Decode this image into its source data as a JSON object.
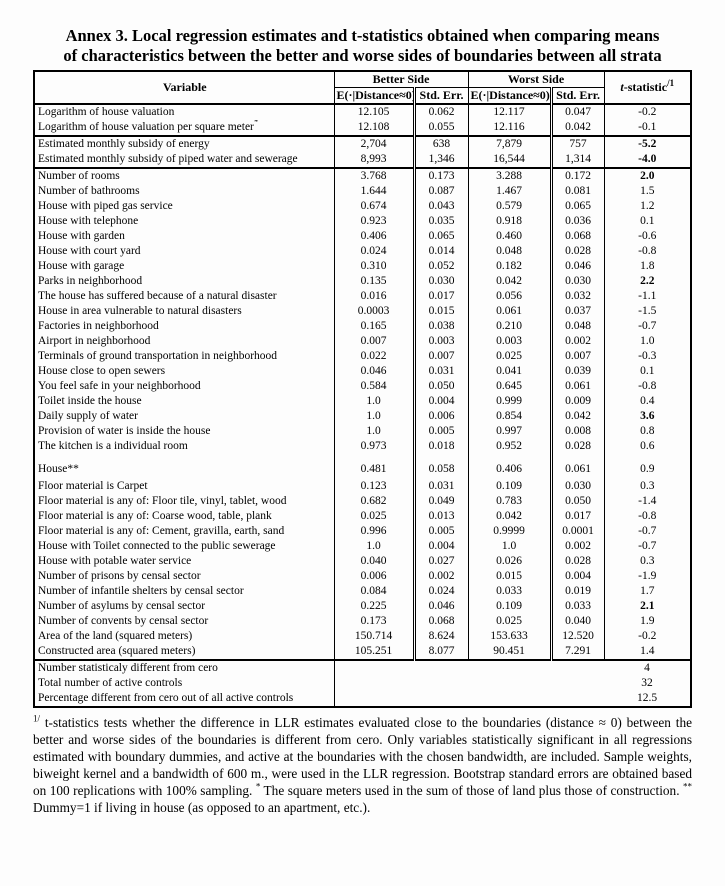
{
  "title": {
    "line1": "Annex 3. Local regression estimates and t-statistics obtained when comparing means",
    "line2": "of characteristics between the better and worse sides of boundaries between all strata"
  },
  "table": {
    "headers": {
      "variable": "Variable",
      "better_side": "Better Side",
      "worst_side": "Worst Side",
      "e_label": "E(·|Distance≈0)",
      "std_err_label": "Std. Err.",
      "t_statistic_label": "t",
      "t_statistic_rest": "-statistic",
      "t_statistic_sup": "/1"
    },
    "rows": [
      {
        "label": "Logarithm of house valuation",
        "eb": "12.105",
        "seb": "0.062",
        "ew": "12.117",
        "sew": "0.047",
        "t": "-0.2"
      },
      {
        "label": "Logarithm of house valuation per square meter",
        "sup": "*",
        "eb": "12.108",
        "seb": "0.055",
        "ew": "12.116",
        "sew": "0.042",
        "t": "-0.1"
      },
      {
        "label": "Estimated monthly subsidy of energy",
        "eb": "2,704",
        "seb": "638",
        "ew": "7,879",
        "sew": "757",
        "t": "-5.2",
        "bold": true,
        "thick_top": true
      },
      {
        "label": "Estimated monthly subsidy of piped water and sewerage",
        "eb": "8,993",
        "seb": "1,346",
        "ew": "16,544",
        "sew": "1,314",
        "t": "-4.0",
        "bold": true
      },
      {
        "label": "Number of rooms",
        "eb": "3.768",
        "seb": "0.173",
        "ew": "3.288",
        "sew": "0.172",
        "t": "2.0",
        "bold": true,
        "thick_top": true
      },
      {
        "label": "Number of bathrooms",
        "eb": "1.644",
        "seb": "0.087",
        "ew": "1.467",
        "sew": "0.081",
        "t": "1.5"
      },
      {
        "label": "House with piped gas service",
        "eb": "0.674",
        "seb": "0.043",
        "ew": "0.579",
        "sew": "0.065",
        "t": "1.2"
      },
      {
        "label": "House with telephone",
        "eb": "0.923",
        "seb": "0.035",
        "ew": "0.918",
        "sew": "0.036",
        "t": "0.1"
      },
      {
        "label": "House with garden",
        "eb": "0.406",
        "seb": "0.065",
        "ew": "0.460",
        "sew": "0.068",
        "t": "-0.6"
      },
      {
        "label": "House with court yard",
        "eb": "0.024",
        "seb": "0.014",
        "ew": "0.048",
        "sew": "0.028",
        "t": "-0.8"
      },
      {
        "label": "House with garage",
        "eb": "0.310",
        "seb": "0.052",
        "ew": "0.182",
        "sew": "0.046",
        "t": "1.8"
      },
      {
        "label": "Parks in neighborhood",
        "eb": "0.135",
        "seb": "0.030",
        "ew": "0.042",
        "sew": "0.030",
        "t": "2.2",
        "bold": true
      },
      {
        "label": "The house has suffered because of a natural disaster",
        "eb": "0.016",
        "seb": "0.017",
        "ew": "0.056",
        "sew": "0.032",
        "t": "-1.1"
      },
      {
        "label": "House in area vulnerable to natural disasters",
        "eb": "0.0003",
        "seb": "0.015",
        "ew": "0.061",
        "sew": "0.037",
        "t": "-1.5"
      },
      {
        "label": "Factories in neighborhood",
        "eb": "0.165",
        "seb": "0.038",
        "ew": "0.210",
        "sew": "0.048",
        "t": "-0.7"
      },
      {
        "label": "Airport in neighborhood",
        "eb": "0.007",
        "seb": "0.003",
        "ew": "0.003",
        "sew": "0.002",
        "t": "1.0"
      },
      {
        "label": "Terminals of ground transportation in neighborhood",
        "eb": "0.022",
        "seb": "0.007",
        "ew": "0.025",
        "sew": "0.007",
        "t": "-0.3"
      },
      {
        "label": "House close to open sewers",
        "eb": "0.046",
        "seb": "0.031",
        "ew": "0.041",
        "sew": "0.039",
        "t": "0.1"
      },
      {
        "label": "You feel safe in your neighborhood",
        "eb": "0.584",
        "seb": "0.050",
        "ew": "0.645",
        "sew": "0.061",
        "t": "-0.8"
      },
      {
        "label": "Toilet inside the house",
        "eb": "1.0",
        "seb": "0.004",
        "ew": "0.999",
        "sew": "0.009",
        "t": "0.4"
      },
      {
        "label": "Daily supply of water",
        "eb": "1.0",
        "seb": "0.006",
        "ew": "0.854",
        "sew": "0.042",
        "t": "3.6",
        "bold": true
      },
      {
        "label": "Provision of water is inside the house",
        "eb": "1.0",
        "seb": "0.005",
        "ew": "0.997",
        "sew": "0.008",
        "t": "0.8"
      },
      {
        "label": "The kitchen is a individual room",
        "eb": "0.973",
        "seb": "0.018",
        "ew": "0.952",
        "sew": "0.028",
        "t": "0.6"
      },
      {
        "label": "House**",
        "eb": "0.481",
        "seb": "0.058",
        "ew": "0.406",
        "sew": "0.061",
        "t": "0.9",
        "spacer": true
      },
      {
        "label": "Floor material is Carpet",
        "eb": "0.123",
        "seb": "0.031",
        "ew": "0.109",
        "sew": "0.030",
        "t": "0.3"
      },
      {
        "label": "Floor material is any of: Floor tile, vinyl, tablet, wood",
        "eb": "0.682",
        "seb": "0.049",
        "ew": "0.783",
        "sew": "0.050",
        "t": "-1.4"
      },
      {
        "label": "Floor material is any of: Coarse wood, table, plank",
        "eb": "0.025",
        "seb": "0.013",
        "ew": "0.042",
        "sew": "0.017",
        "t": "-0.8"
      },
      {
        "label": "Floor material is any of: Cement, gravilla, earth, sand",
        "eb": "0.996",
        "seb": "0.005",
        "ew": "0.9999",
        "sew": "0.0001",
        "t": "-0.7"
      },
      {
        "label": "House with Toilet connected to the public sewerage",
        "eb": "1.0",
        "seb": "0.004",
        "ew": "1.0",
        "sew": "0.002",
        "t": "-0.7"
      },
      {
        "label": "House with potable water service",
        "eb": "0.040",
        "seb": "0.027",
        "ew": "0.026",
        "sew": "0.028",
        "t": "0.3"
      },
      {
        "label": "Number of prisons by censal sector",
        "eb": "0.006",
        "seb": "0.002",
        "ew": "0.015",
        "sew": "0.004",
        "t": "-1.9"
      },
      {
        "label": "Number of infantile shelters by censal sector",
        "eb": "0.084",
        "seb": "0.024",
        "ew": "0.033",
        "sew": "0.019",
        "t": "1.7"
      },
      {
        "label": "Number of asylums  by censal sector",
        "eb": "0.225",
        "seb": "0.046",
        "ew": "0.109",
        "sew": "0.033",
        "t": "2.1",
        "bold": true
      },
      {
        "label": "Number of convents  by censal sector",
        "eb": "0.173",
        "seb": "0.068",
        "ew": "0.025",
        "sew": "0.040",
        "t": "1.9"
      },
      {
        "label": "Area of the land (squared meters)",
        "eb": "150.714",
        "seb": "8.624",
        "ew": "153.633",
        "sew": "12.520",
        "t": "-0.2"
      },
      {
        "label": "Constructed area (squared meters)",
        "eb": "105.251",
        "seb": "8.077",
        "ew": "90.451",
        "sew": "7.291",
        "t": "1.4"
      }
    ],
    "summary_rows": [
      {
        "label": "Number statisticaly different from cero",
        "value": "4"
      },
      {
        "label": "Total number of active controls",
        "value": "32"
      },
      {
        "label": "Percentage different from cero out of all active controls",
        "value": "12.5"
      }
    ]
  },
  "footnote": {
    "segments": [
      {
        "sup": "1/"
      },
      {
        "text": " t-statistics tests whether the difference in LLR estimates evaluated close to the boundaries (distance ≈ 0) between the better and worse sides of the boundaries is different from cero. Only variables statistically significant in all regressions estimated with boundary dummies, and active at the boundaries with the chosen bandwidth, are included. Sample weights, biweight kernel and a bandwidth of 600 m., were used in the LLR regression. Bootstrap standard errors are obtained based on 100 replications with 100% sampling. "
      },
      {
        "sup": "*"
      },
      {
        "text": " The square meters used in the sum of those of land plus those of construction. "
      },
      {
        "sup": "**"
      },
      {
        "text": " Dummy=1 if living in house (as opposed to an apartment, etc.)."
      }
    ]
  }
}
